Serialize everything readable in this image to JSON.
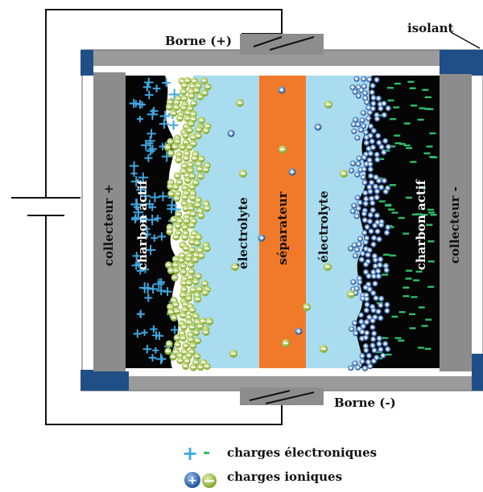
{
  "labels": {
    "borne_plus": "Borne (+)",
    "borne_minus": "Borne (-)",
    "isolant": "isolant",
    "collecteur_plus": "collecteur +",
    "collecteur_minus": "collecteur -",
    "charbon_actif_left": "charbon actif",
    "charbon_actif_right": "charbon actif",
    "electrolyte_left": "électrolyte",
    "electrolyte_right": "électrolyte",
    "separateur": "séparateur"
  },
  "legend": {
    "electronic": "charges électroniques",
    "ionic": "charges ioniques"
  },
  "colors": {
    "collector": "#8c8c8c",
    "insulator": "#1f4f86",
    "electrolyte": "#a8dcee",
    "separator": "#f07a2a",
    "carbon": "#050505",
    "plus_charge": "#3fa7e0",
    "minus_charge": "#2fbf6a",
    "anion": "#9fc23c",
    "cation": "#2d6bb5"
  }
}
